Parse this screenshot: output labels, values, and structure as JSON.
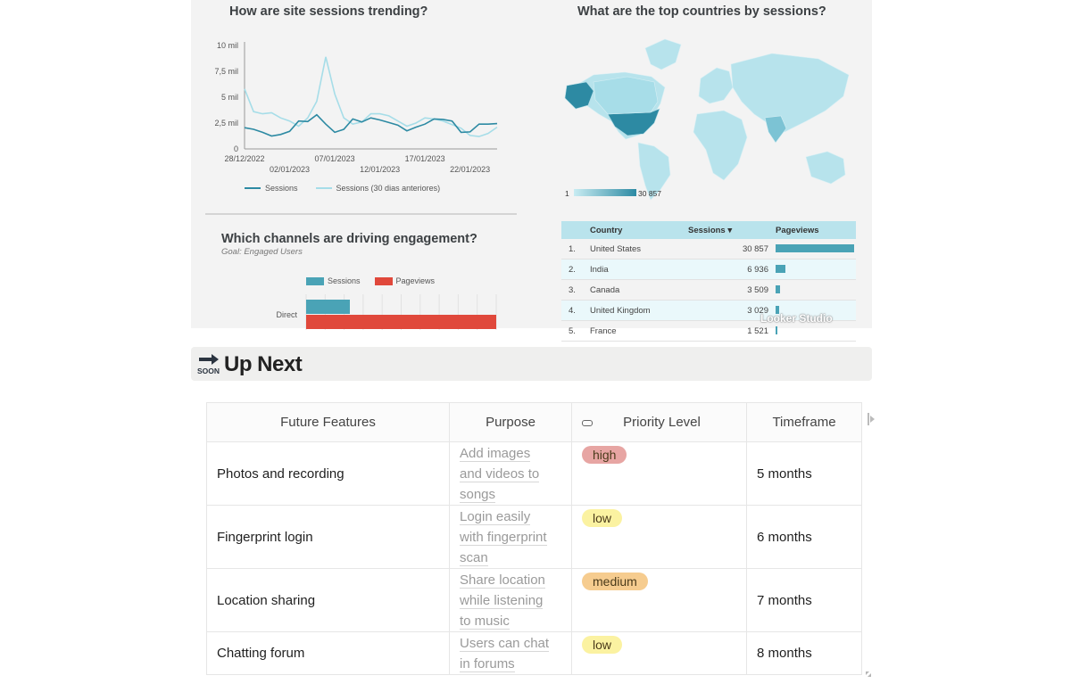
{
  "left_panel": {
    "sessions_title": "How are site sessions trending?",
    "y_ticks": [
      "10 mil",
      "7,5 mil",
      "5 mil",
      "2,5 mil",
      "0"
    ],
    "x_ticks_top": [
      "28/12/2022",
      "07/01/2023",
      "17/01/2023"
    ],
    "x_ticks_bottom": [
      "02/01/2023",
      "12/01/2023",
      "22/01/2023"
    ],
    "legend": {
      "current": "Sessions",
      "previous": "Sessions (30 dias anteriores)"
    },
    "channels_title": "Which channels are driving engagement?",
    "channels_subtitle": "Goal: Engaged Users",
    "channels_legend": {
      "sessions": "Sessions",
      "pageviews": "Pageviews"
    },
    "channel_label": "Direct"
  },
  "right_panel": {
    "countries_title": "What are the top countries by sessions?",
    "scale_min": "1",
    "scale_max": "30 857",
    "table": {
      "headers": {
        "country": "Country",
        "sessions": "Sessions",
        "sort_indicator": "▾",
        "pageviews": "Pageviews"
      },
      "rows": [
        {
          "rank": "1.",
          "country": "United States",
          "sessions": "30 857",
          "pv_fraction": 1.0
        },
        {
          "rank": "2.",
          "country": "India",
          "sessions": "6 936",
          "pv_fraction": 0.12
        },
        {
          "rank": "3.",
          "country": "Canada",
          "sessions": "3 509",
          "pv_fraction": 0.06
        },
        {
          "rank": "4.",
          "country": "United Kingdom",
          "sessions": "3 029",
          "pv_fraction": 0.05
        },
        {
          "rank": "5.",
          "country": "France",
          "sessions": "1 521",
          "pv_fraction": 0.02
        }
      ]
    },
    "watermark": "Looker Studio"
  },
  "chart_data": [
    {
      "type": "line",
      "title": "How are site sessions trending?",
      "x": [
        "28/12/2022",
        "29/12/2022",
        "30/12/2022",
        "31/12/2022",
        "01/01/2023",
        "02/01/2023",
        "03/01/2023",
        "04/01/2023",
        "05/01/2023",
        "06/01/2023",
        "07/01/2023",
        "08/01/2023",
        "09/01/2023",
        "10/01/2023",
        "11/01/2023",
        "12/01/2023",
        "13/01/2023",
        "14/01/2023",
        "15/01/2023",
        "16/01/2023",
        "17/01/2023",
        "18/01/2023",
        "19/01/2023",
        "20/01/2023",
        "21/01/2023",
        "22/01/2023",
        "23/01/2023",
        "24/01/2023",
        "25/01/2023"
      ],
      "ylim": [
        0,
        10000
      ],
      "y_ticks": [
        0,
        2500,
        5000,
        7500,
        10000
      ],
      "series": [
        {
          "name": "Sessions",
          "color": "#2d8aa3",
          "values": [
            2050,
            1900,
            1600,
            1250,
            1400,
            1700,
            2700,
            2650,
            3300,
            2400,
            1600,
            1900,
            2900,
            2600,
            3000,
            2800,
            2550,
            2300,
            1750,
            2100,
            2400,
            2900,
            2850,
            2700,
            1600,
            1650,
            2400,
            2400,
            2450
          ]
        },
        {
          "name": "Sessions (30 dias anteriores)",
          "color": "#a6dde8",
          "values": [
            5800,
            3600,
            3400,
            3500,
            3000,
            2700,
            2200,
            3000,
            4600,
            8900,
            5300,
            3000,
            2400,
            2600,
            3400,
            3400,
            3200,
            2700,
            2200,
            2500,
            3000,
            2900,
            2700,
            2350,
            2000,
            1300,
            1200,
            1500,
            2100
          ]
        }
      ]
    },
    {
      "type": "bar",
      "title": "Which channels are driving engagement?",
      "categories": [
        "Direct"
      ],
      "series": [
        {
          "name": "Sessions",
          "color": "#4aa3b6",
          "values": [
            23
          ]
        },
        {
          "name": "Pageviews",
          "color": "#e0483b",
          "values": [
            100
          ]
        }
      ]
    }
  ],
  "up_next": {
    "title": "Up Next",
    "icon": "soon-arrow-icon",
    "headers": [
      "Future Features",
      "Purpose",
      "Priority Level",
      "Timeframe"
    ],
    "rows": [
      {
        "feature": "Photos and recording",
        "purpose": [
          "Add images",
          "and videos to",
          "songs"
        ],
        "priority": "high",
        "priority_color": "#e7a5a3",
        "timeframe": "5 months"
      },
      {
        "feature": "Fingerprint login",
        "purpose": [
          "Login easily",
          "with fingerprint",
          "scan"
        ],
        "priority": "low",
        "priority_color": "#fbf2a1",
        "timeframe": "6 months"
      },
      {
        "feature": "Location sharing",
        "purpose": [
          "Share location",
          "while listening",
          "to music"
        ],
        "priority": "medium",
        "priority_color": "#f6cc8f",
        "timeframe": "7 months"
      },
      {
        "feature": "Chatting forum",
        "purpose": [
          "Users can chat",
          "in forums"
        ],
        "priority": "low",
        "priority_color": "#fbf2a1",
        "timeframe": "8 months"
      }
    ]
  }
}
